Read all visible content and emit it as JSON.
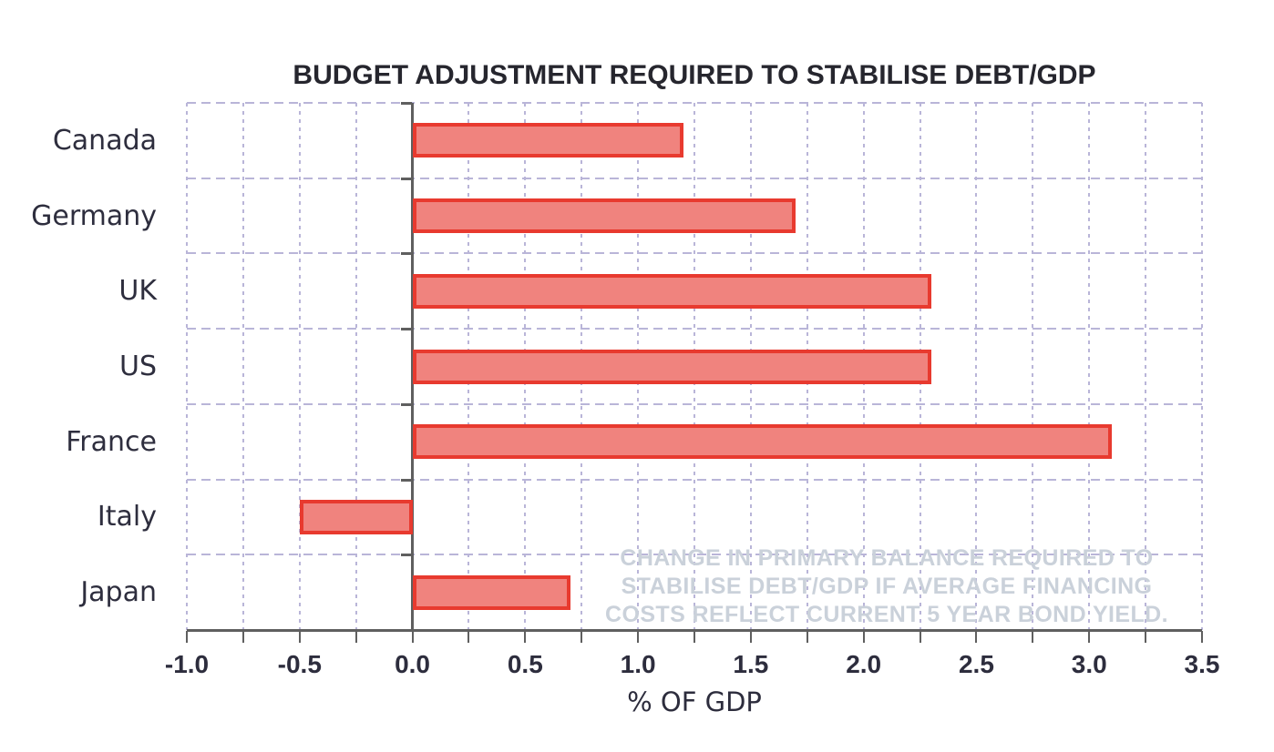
{
  "title": "BUDGET ADJUSTMENT REQUIRED TO STABILISE DEBT/GDP",
  "chart_data": {
    "type": "bar",
    "orientation": "horizontal",
    "title": "BUDGET ADJUSTMENT REQUIRED TO STABILISE DEBT/GDP",
    "categories": [
      "Canada",
      "Germany",
      "UK",
      "US",
      "France",
      "Italy",
      "Japan"
    ],
    "values": [
      1.2,
      1.7,
      2.3,
      2.3,
      3.1,
      -0.5,
      0.7
    ],
    "xlabel": "% OF GDP",
    "ylabel": "",
    "xlim": [
      -1.0,
      3.5
    ],
    "x_major_ticks": [
      -1.0,
      -0.5,
      0.0,
      0.5,
      1.0,
      1.5,
      2.0,
      2.5,
      3.0,
      3.5
    ],
    "x_major_tick_labels": [
      "-1.0",
      "-0.5",
      "0.0",
      "0.5",
      "1.0",
      "1.5",
      "2.0",
      "2.5",
      "3.0",
      "3.5"
    ],
    "x_minor_tick_step": 0.25,
    "grid": true,
    "legend": "none",
    "annotation": {
      "lines": [
        "CHANGE IN PRIMARY BALANCE REQUIRED TO",
        "STABILISE DEBT/GDP IF AVERAGE  FINANCING",
        "COSTS REFLECT  CURRENT 5 YEAR  BOND YIELD."
      ]
    },
    "colors": {
      "bar_fill": "#f0837e",
      "bar_border": "#e83a2f",
      "grid": "#b9b5d8",
      "axis": "#5f5f5f",
      "text": "#2d2d3d",
      "annotation_text": "#cad1da",
      "background": "#ffffff"
    }
  }
}
